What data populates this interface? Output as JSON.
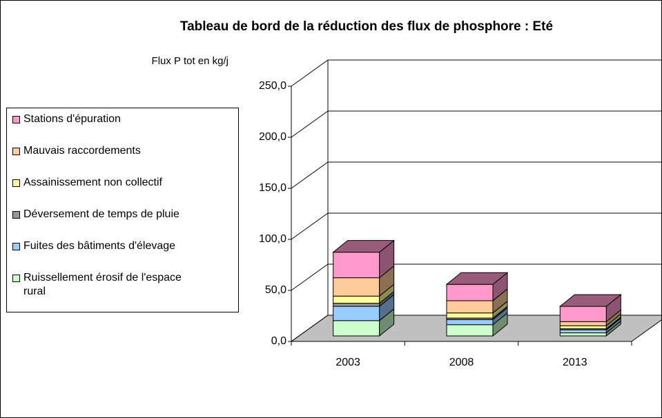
{
  "chart_data": {
    "type": "bar3d_stacked",
    "title": "Tableau de bord de la réduction des flux de phosphore : Eté",
    "y_label": "Flux P tot en kg/j",
    "categories": [
      "2003",
      "2008",
      "2013"
    ],
    "series": [
      {
        "name": "Ruissellement érosif de l'espace rural",
        "color": "#ccffcc",
        "values": [
          15,
          11,
          3
        ]
      },
      {
        "name": "Fuites des bâtiments d'élevage",
        "color": "#99ccff",
        "values": [
          14,
          5,
          3
        ]
      },
      {
        "name": "Déversement de temps de pluie",
        "color": "#969696",
        "values": [
          3,
          1.5,
          1
        ]
      },
      {
        "name": "Assainissement non collectif",
        "color": "#ffff99",
        "values": [
          7,
          5,
          3
        ]
      },
      {
        "name": "Mauvais raccordements",
        "color": "#ffcc99",
        "values": [
          18,
          12,
          4
        ]
      },
      {
        "name": "Stations d'épuration",
        "color": "#ff99cc",
        "values": [
          25,
          16,
          15
        ]
      }
    ],
    "ylim": [
      0,
      250
    ],
    "yticks": [
      {
        "value": 0,
        "label": "0,0"
      },
      {
        "value": 50,
        "label": "50,0"
      },
      {
        "value": 100,
        "label": "100,0"
      },
      {
        "value": 150,
        "label": "150,0"
      },
      {
        "value": 200,
        "label": "200,0"
      },
      {
        "value": 250,
        "label": "250,0"
      }
    ],
    "grid": true
  }
}
